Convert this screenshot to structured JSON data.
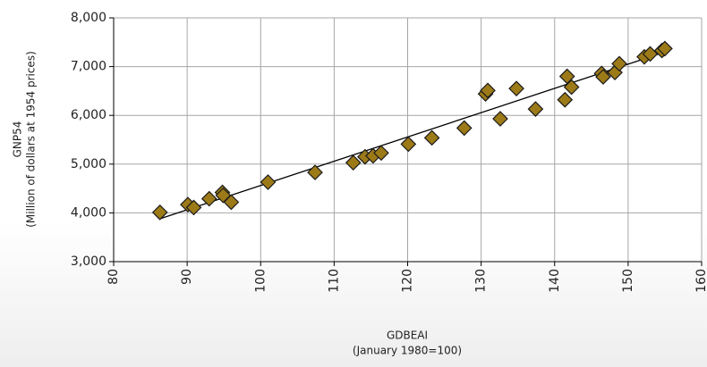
{
  "chart_data": {
    "type": "scatter",
    "ylabel": "GNP54",
    "ylabel_sub": "(Million of dollars at 1954 prices)",
    "xlabel": "GDBEAI",
    "xlabel_sub": "(January 1980=100)",
    "x": [
      86.3,
      90.1,
      90.9,
      93.0,
      94.8,
      94.9,
      96.0,
      101.0,
      107.4,
      112.6,
      114.2,
      115.3,
      116.4,
      120.1,
      123.3,
      127.7,
      130.6,
      130.9,
      132.6,
      134.8,
      137.4,
      141.4,
      141.7,
      142.3,
      146.4,
      146.6,
      148.2,
      148.8,
      152.2,
      153.0,
      154.6,
      155.0
    ],
    "values": [
      4010,
      4170,
      4110,
      4290,
      4420,
      4360,
      4220,
      4630,
      4830,
      5030,
      5150,
      5170,
      5230,
      5410,
      5540,
      5740,
      6440,
      6510,
      5930,
      6550,
      6130,
      6320,
      6800,
      6580,
      6860,
      6790,
      6880,
      7060,
      7200,
      7260,
      7330,
      7370
    ],
    "color": "#9c7a18",
    "trendline": {
      "x": [
        86.3,
        155.0
      ],
      "values": [
        3880,
        7300
      ]
    },
    "xlim": [
      80,
      160
    ],
    "xticks": [
      80,
      90,
      100,
      110,
      120,
      130,
      140,
      150,
      160
    ],
    "ylim": [
      3000,
      8000
    ],
    "yticks": [
      {
        "value": 3000,
        "label": "3,000"
      },
      {
        "value": 4000,
        "label": "4,000"
      },
      {
        "value": 5000,
        "label": "5,000"
      },
      {
        "value": 6000,
        "label": "6,000"
      },
      {
        "value": 7000,
        "label": "7,000"
      },
      {
        "value": 8000,
        "label": "8,000"
      }
    ],
    "grid": true
  }
}
